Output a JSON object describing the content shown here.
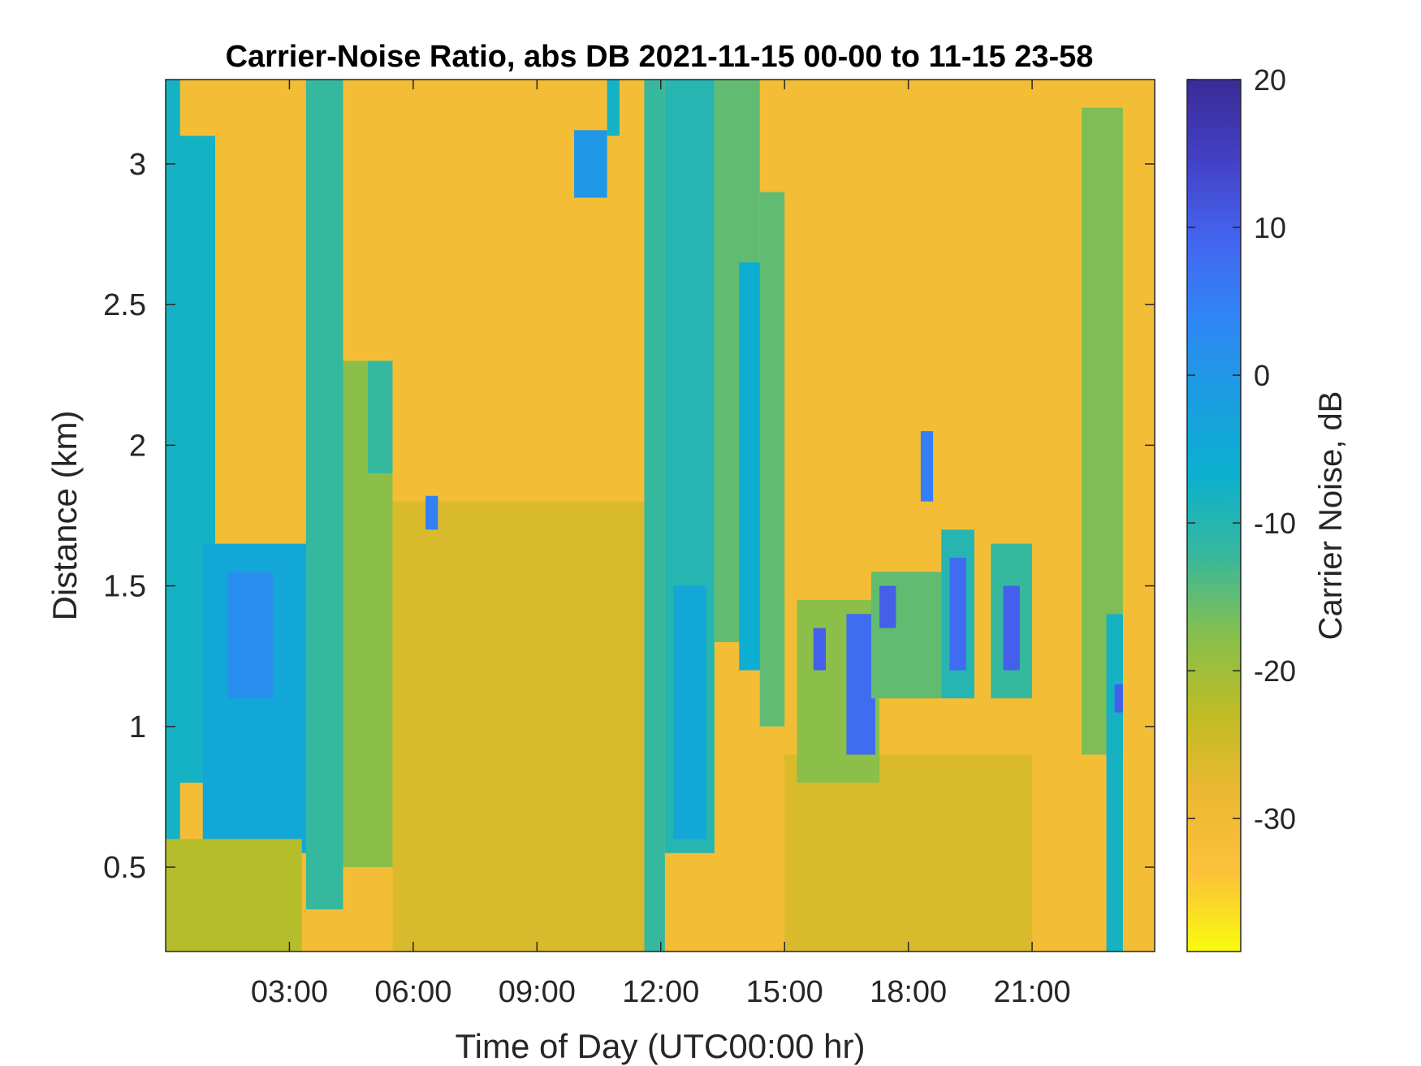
{
  "chart_data": {
    "type": "heatmap",
    "title": "Carrier-Noise Ratio, abs DB 2021-11-15 00-00 to 11-15 23-58",
    "xlabel": "Time of Day (UTC00:00 hr)",
    "ylabel": "Distance (km)",
    "colorbar_label": "Carrier Noise, dB",
    "x_unit": "hours",
    "xlim": [
      0,
      23.97
    ],
    "ylim": [
      0.2,
      3.3
    ],
    "x_ticks": [
      3,
      6,
      9,
      12,
      15,
      18,
      21
    ],
    "x_tick_labels": [
      "03:00",
      "06:00",
      "09:00",
      "12:00",
      "15:00",
      "18:00",
      "21:00"
    ],
    "y_ticks": [
      0.5,
      1,
      1.5,
      2,
      2.5,
      3
    ],
    "y_tick_labels": [
      "0.5",
      "1",
      "1.5",
      "2",
      "2.5",
      "3"
    ],
    "colorbar_ticks": [
      20,
      10,
      0,
      -10,
      -20,
      -30
    ],
    "colorbar_tick_labels": [
      "20",
      "10",
      "0",
      "-10",
      "-20",
      "-30"
    ],
    "colorbar_range": [
      -39,
      20
    ],
    "colormap": "parula-reversed",
    "colormap_colors": [
      "#f9fb0e",
      "#fcc13a",
      "#ecb832",
      "#bfbc24",
      "#86bf4d",
      "#37b89c",
      "#0cb0cf",
      "#1a9ee0",
      "#2f86f6",
      "#4464ef",
      "#4340c4",
      "#3a2b97"
    ],
    "background_value": -31,
    "grid": false,
    "features": [
      {
        "x0": 0.0,
        "x1": 0.35,
        "y0": 0.2,
        "y1": 3.3,
        "value": -8
      },
      {
        "x0": 0.3,
        "x1": 1.2,
        "y0": 0.8,
        "y1": 3.1,
        "value": -8
      },
      {
        "x0": 0.9,
        "x1": 3.6,
        "y0": 0.55,
        "y1": 1.65,
        "value": -4
      },
      {
        "x0": 1.5,
        "x1": 2.6,
        "y0": 1.1,
        "y1": 1.55,
        "value": 2
      },
      {
        "x0": 0.0,
        "x1": 3.3,
        "y0": 0.2,
        "y1": 0.6,
        "value": -22
      },
      {
        "x0": 3.4,
        "x1": 4.3,
        "y0": 0.35,
        "y1": 3.3,
        "value": -12
      },
      {
        "x0": 4.3,
        "x1": 5.5,
        "y0": 0.5,
        "y1": 2.3,
        "value": -18
      },
      {
        "x0": 4.9,
        "x1": 5.5,
        "y0": 1.9,
        "y1": 2.3,
        "value": -12
      },
      {
        "x0": 5.5,
        "x1": 11.6,
        "y0": 0.2,
        "y1": 1.8,
        "value": -26
      },
      {
        "x0": 6.3,
        "x1": 6.6,
        "y0": 1.7,
        "y1": 1.82,
        "value": 5
      },
      {
        "x0": 9.9,
        "x1": 10.7,
        "y0": 2.88,
        "y1": 3.12,
        "value": 0
      },
      {
        "x0": 10.7,
        "x1": 11.0,
        "y0": 3.1,
        "y1": 3.3,
        "value": -8
      },
      {
        "x0": 11.6,
        "x1": 12.1,
        "y0": 0.2,
        "y1": 3.3,
        "value": -12
      },
      {
        "x0": 12.1,
        "x1": 13.3,
        "y0": 0.55,
        "y1": 3.3,
        "value": -10
      },
      {
        "x0": 12.3,
        "x1": 13.1,
        "y0": 0.6,
        "y1": 1.5,
        "value": -4
      },
      {
        "x0": 13.3,
        "x1": 14.4,
        "y0": 1.3,
        "y1": 3.3,
        "value": -15
      },
      {
        "x0": 13.9,
        "x1": 14.5,
        "y0": 1.2,
        "y1": 2.65,
        "value": -6
      },
      {
        "x0": 14.4,
        "x1": 15.0,
        "y0": 1.0,
        "y1": 2.9,
        "value": -15
      },
      {
        "x0": 15.0,
        "x1": 21.0,
        "y0": 0.2,
        "y1": 0.9,
        "value": -26
      },
      {
        "x0": 15.3,
        "x1": 17.3,
        "y0": 0.8,
        "y1": 1.45,
        "value": -18
      },
      {
        "x0": 15.7,
        "x1": 16.0,
        "y0": 1.2,
        "y1": 1.35,
        "value": 10
      },
      {
        "x0": 16.5,
        "x1": 17.2,
        "y0": 0.9,
        "y1": 1.4,
        "value": 8
      },
      {
        "x0": 17.1,
        "x1": 18.8,
        "y0": 1.1,
        "y1": 1.55,
        "value": -15
      },
      {
        "x0": 17.3,
        "x1": 17.7,
        "y0": 1.35,
        "y1": 1.5,
        "value": 10
      },
      {
        "x0": 18.3,
        "x1": 18.6,
        "y0": 1.8,
        "y1": 2.05,
        "value": 5
      },
      {
        "x0": 18.8,
        "x1": 19.6,
        "y0": 1.1,
        "y1": 1.7,
        "value": -10
      },
      {
        "x0": 19.0,
        "x1": 19.4,
        "y0": 1.2,
        "y1": 1.6,
        "value": 8
      },
      {
        "x0": 20.0,
        "x1": 21.0,
        "y0": 1.1,
        "y1": 1.65,
        "value": -12
      },
      {
        "x0": 20.3,
        "x1": 20.7,
        "y0": 1.2,
        "y1": 1.5,
        "value": 10
      },
      {
        "x0": 22.2,
        "x1": 23.2,
        "y0": 0.9,
        "y1": 3.2,
        "value": -17
      },
      {
        "x0": 22.8,
        "x1": 23.2,
        "y0": 0.2,
        "y1": 1.4,
        "value": -8
      },
      {
        "x0": 23.0,
        "x1": 23.2,
        "y0": 1.05,
        "y1": 1.15,
        "value": 10
      }
    ]
  }
}
